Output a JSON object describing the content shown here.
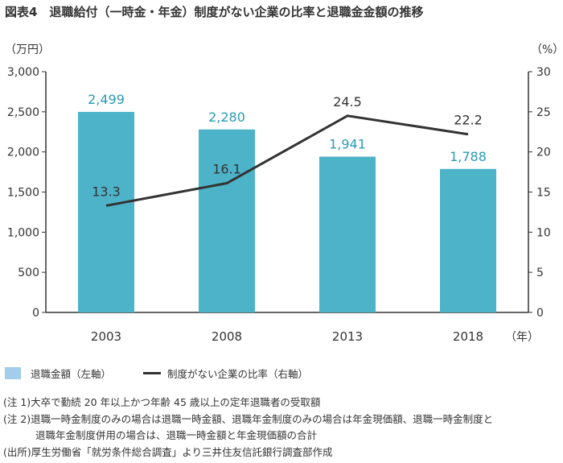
{
  "title": "図表4　退職給付（一時金・年金）制度がない企業の比率と退職金金額の推移",
  "chart_data": {
    "type": "bar+line",
    "title": "図表4　退職給付（一時金・年金）制度がない企業の比率と退職金金額の推移",
    "categories": [
      "2003",
      "2008",
      "2013",
      "2018"
    ],
    "xlabel": "（年）",
    "y_left": {
      "label": "（万円）",
      "range": [
        0,
        3000
      ],
      "ticks": [
        "0",
        "500",
        "1,000",
        "1,500",
        "2,000",
        "2,500",
        "3,000"
      ]
    },
    "y_right": {
      "label": "（%）",
      "range": [
        0,
        30
      ],
      "ticks": [
        "0",
        "5",
        "10",
        "15",
        "20",
        "25",
        "30"
      ]
    },
    "series": [
      {
        "name": "退職金額（左軸）",
        "type": "bar",
        "axis": "left",
        "values": [
          2499,
          2280,
          1941,
          1788
        ],
        "labels": [
          "2,499",
          "2,280",
          "1,941",
          "1,788"
        ],
        "color": "#4db3c9",
        "label_color": "#2a9ab4"
      },
      {
        "name": "制度がない企業の比率（右軸）",
        "type": "line",
        "axis": "right",
        "values": [
          13.3,
          16.1,
          24.5,
          22.2
        ],
        "labels": [
          "13.3",
          "16.1",
          "24.5",
          "22.2"
        ],
        "color": "#333333"
      }
    ],
    "grid": false,
    "legend_placement": "bottom-left"
  },
  "legend": {
    "bar": "退職金額（左軸）",
    "line": "制度がない企業の比率（右軸）"
  },
  "notes": [
    "(注 1)大卒で勤続 20 年以上かつ年齢 45 歳以上の定年退職者の受取額",
    "(注 2)退職一時金制度のみの場合は退職一時金額、退職年金制度のみの場合は年金現価額、退職一時金制度と",
    "退職年金制度併用の場合は、退職一時金額と年金現価額の合計",
    "(出所)厚生労働省「就労条件総合調査」より三井住友信託銀行調査部作成"
  ]
}
